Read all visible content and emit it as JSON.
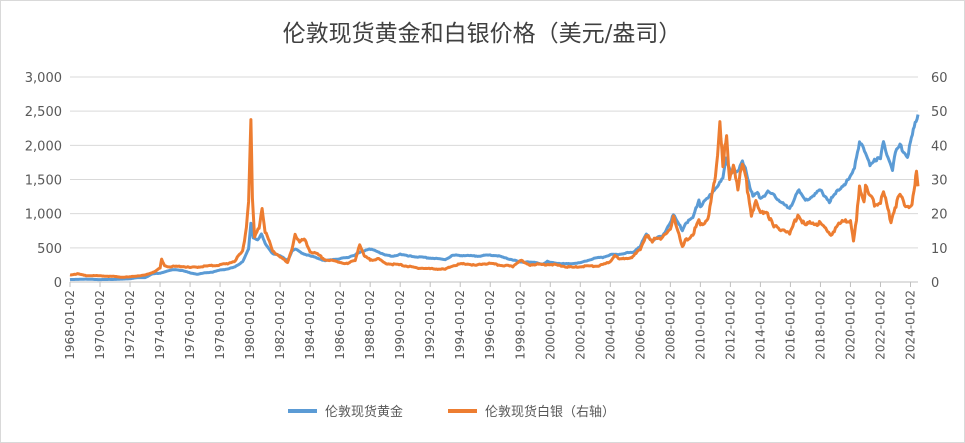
{
  "chart_data": {
    "type": "line",
    "title": "伦敦现货黄金和白银价格（美元/盎司）",
    "x_range": [
      1968.0,
      2024.5
    ],
    "x_ticks": [
      "1968-01-02",
      "1970-01-02",
      "1972-01-02",
      "1974-01-02",
      "1976-01-02",
      "1978-01-02",
      "1980-01-02",
      "1982-01-02",
      "1984-01-02",
      "1986-01-02",
      "1988-01-02",
      "1990-01-02",
      "1992-01-02",
      "1994-01-02",
      "1996-01-02",
      "1998-01-02",
      "2000-01-02",
      "2002-01-02",
      "2004-01-02",
      "2006-01-02",
      "2008-01-02",
      "2010-01-02",
      "2012-01-02",
      "2014-01-02",
      "2016-01-02",
      "2018-01-02",
      "2020-01-02",
      "2022-01-02",
      "2024-01-02"
    ],
    "y_left": {
      "min": 0,
      "max": 3000,
      "ticks": [
        "0",
        "500",
        "1,000",
        "1,500",
        "2,000",
        "2,500",
        "3,000"
      ]
    },
    "y_right": {
      "min": 0,
      "max": 60,
      "ticks": [
        "0",
        "10",
        "20",
        "30",
        "40",
        "50",
        "60"
      ]
    },
    "series": [
      {
        "name": "伦敦现货黄金",
        "axis": "left",
        "color": "#5b9bd5",
        "points": [
          [
            1968.0,
            35
          ],
          [
            1969.0,
            42
          ],
          [
            1970.0,
            35
          ],
          [
            1971.0,
            38
          ],
          [
            1972.0,
            48
          ],
          [
            1972.5,
            65
          ],
          [
            1973.0,
            65
          ],
          [
            1973.5,
            120
          ],
          [
            1974.0,
            130
          ],
          [
            1974.5,
            160
          ],
          [
            1975.0,
            185
          ],
          [
            1975.5,
            165
          ],
          [
            1976.0,
            135
          ],
          [
            1976.5,
            112
          ],
          [
            1977.0,
            135
          ],
          [
            1977.5,
            145
          ],
          [
            1978.0,
            175
          ],
          [
            1978.5,
            190
          ],
          [
            1979.0,
            220
          ],
          [
            1979.5,
            300
          ],
          [
            1979.9,
            480
          ],
          [
            1980.05,
            850
          ],
          [
            1980.2,
            650
          ],
          [
            1980.5,
            620
          ],
          [
            1980.75,
            700
          ],
          [
            1981.0,
            560
          ],
          [
            1981.5,
            420
          ],
          [
            1982.0,
            380
          ],
          [
            1982.5,
            320
          ],
          [
            1982.8,
            450
          ],
          [
            1983.0,
            480
          ],
          [
            1983.5,
            420
          ],
          [
            1984.0,
            380
          ],
          [
            1984.5,
            350
          ],
          [
            1985.0,
            310
          ],
          [
            1985.5,
            330
          ],
          [
            1986.0,
            340
          ],
          [
            1986.5,
            360
          ],
          [
            1987.0,
            400
          ],
          [
            1987.5,
            450
          ],
          [
            1987.95,
            490
          ],
          [
            1988.5,
            440
          ],
          [
            1989.0,
            400
          ],
          [
            1989.5,
            370
          ],
          [
            1990.0,
            410
          ],
          [
            1990.5,
            380
          ],
          [
            1991.0,
            370
          ],
          [
            1991.5,
            360
          ],
          [
            1992.0,
            350
          ],
          [
            1992.5,
            340
          ],
          [
            1993.0,
            330
          ],
          [
            1993.5,
            390
          ],
          [
            1994.0,
            390
          ],
          [
            1994.5,
            385
          ],
          [
            1995.0,
            380
          ],
          [
            1995.5,
            385
          ],
          [
            1996.0,
            395
          ],
          [
            1996.5,
            385
          ],
          [
            1997.0,
            350
          ],
          [
            1997.5,
            325
          ],
          [
            1998.0,
            290
          ],
          [
            1998.5,
            295
          ],
          [
            1999.0,
            285
          ],
          [
            1999.5,
            260
          ],
          [
            1999.8,
            300
          ],
          [
            2000.0,
            285
          ],
          [
            2000.5,
            275
          ],
          [
            2001.0,
            265
          ],
          [
            2001.5,
            270
          ],
          [
            2002.0,
            280
          ],
          [
            2002.5,
            315
          ],
          [
            2003.0,
            350
          ],
          [
            2003.5,
            360
          ],
          [
            2004.0,
            400
          ],
          [
            2004.5,
            400
          ],
          [
            2005.0,
            425
          ],
          [
            2005.5,
            430
          ],
          [
            2006.0,
            530
          ],
          [
            2006.4,
            700
          ],
          [
            2006.8,
            600
          ],
          [
            2007.0,
            640
          ],
          [
            2007.5,
            670
          ],
          [
            2008.0,
            880
          ],
          [
            2008.2,
            980
          ],
          [
            2008.8,
            760
          ],
          [
            2009.0,
            860
          ],
          [
            2009.5,
            940
          ],
          [
            2009.9,
            1200
          ],
          [
            2010.0,
            1110
          ],
          [
            2010.5,
            1220
          ],
          [
            2011.0,
            1380
          ],
          [
            2011.5,
            1500
          ],
          [
            2011.7,
            1800
          ],
          [
            2012.0,
            1650
          ],
          [
            2012.5,
            1600
          ],
          [
            2012.8,
            1750
          ],
          [
            2013.0,
            1670
          ],
          [
            2013.3,
            1400
          ],
          [
            2013.5,
            1250
          ],
          [
            2013.8,
            1300
          ],
          [
            2014.0,
            1230
          ],
          [
            2014.5,
            1310
          ],
          [
            2015.0,
            1250
          ],
          [
            2015.5,
            1150
          ],
          [
            2015.95,
            1060
          ],
          [
            2016.5,
            1350
          ],
          [
            2017.0,
            1190
          ],
          [
            2017.5,
            1260
          ],
          [
            2018.0,
            1340
          ],
          [
            2018.6,
            1180
          ],
          [
            2019.0,
            1290
          ],
          [
            2019.5,
            1420
          ],
          [
            2019.9,
            1500
          ],
          [
            2020.2,
            1620
          ],
          [
            2020.6,
            2060
          ],
          [
            2021.0,
            1870
          ],
          [
            2021.3,
            1720
          ],
          [
            2021.6,
            1800
          ],
          [
            2022.0,
            1800
          ],
          [
            2022.2,
            2040
          ],
          [
            2022.8,
            1640
          ],
          [
            2023.0,
            1900
          ],
          [
            2023.3,
            2000
          ],
          [
            2023.8,
            1840
          ],
          [
            2024.0,
            2050
          ],
          [
            2024.25,
            2250
          ],
          [
            2024.5,
            2450
          ]
        ]
      },
      {
        "name": "伦敦现货白银（右轴）",
        "axis": "right",
        "color": "#ed7d31",
        "points": [
          [
            1968.0,
            2.1
          ],
          [
            1968.5,
            2.4
          ],
          [
            1969.0,
            1.9
          ],
          [
            1970.0,
            1.8
          ],
          [
            1971.0,
            1.6
          ],
          [
            1971.5,
            1.4
          ],
          [
            1972.0,
            1.5
          ],
          [
            1972.5,
            1.8
          ],
          [
            1973.0,
            2.0
          ],
          [
            1973.5,
            2.8
          ],
          [
            1974.0,
            4.0
          ],
          [
            1974.1,
            6.5
          ],
          [
            1974.3,
            4.8
          ],
          [
            1974.6,
            4.5
          ],
          [
            1975.0,
            4.5
          ],
          [
            1975.5,
            4.6
          ],
          [
            1976.0,
            4.2
          ],
          [
            1976.5,
            4.4
          ],
          [
            1977.0,
            4.6
          ],
          [
            1977.5,
            4.8
          ],
          [
            1978.0,
            5.0
          ],
          [
            1978.5,
            5.4
          ],
          [
            1979.0,
            6.2
          ],
          [
            1979.5,
            9.0
          ],
          [
            1979.75,
            16.0
          ],
          [
            1979.9,
            24.0
          ],
          [
            1980.05,
            49.0
          ],
          [
            1980.15,
            24.0
          ],
          [
            1980.3,
            13.0
          ],
          [
            1980.6,
            16.0
          ],
          [
            1980.8,
            22.0
          ],
          [
            1981.0,
            15.0
          ],
          [
            1981.5,
            9.0
          ],
          [
            1982.0,
            7.5
          ],
          [
            1982.5,
            5.5
          ],
          [
            1982.8,
            10.0
          ],
          [
            1983.0,
            14.0
          ],
          [
            1983.3,
            11.5
          ],
          [
            1983.6,
            12.5
          ],
          [
            1984.0,
            9.0
          ],
          [
            1984.5,
            8.0
          ],
          [
            1985.0,
            6.5
          ],
          [
            1985.5,
            6.2
          ],
          [
            1986.0,
            5.8
          ],
          [
            1986.5,
            5.3
          ],
          [
            1987.0,
            6.5
          ],
          [
            1987.3,
            11.0
          ],
          [
            1987.6,
            7.5
          ],
          [
            1988.0,
            6.5
          ],
          [
            1988.5,
            6.8
          ],
          [
            1989.0,
            5.5
          ],
          [
            1989.5,
            5.2
          ],
          [
            1990.0,
            5.0
          ],
          [
            1990.5,
            4.6
          ],
          [
            1991.0,
            4.2
          ],
          [
            1991.5,
            4.0
          ],
          [
            1992.0,
            3.9
          ],
          [
            1992.5,
            3.8
          ],
          [
            1993.0,
            3.7
          ],
          [
            1993.5,
            4.8
          ],
          [
            1994.0,
            5.2
          ],
          [
            1994.5,
            5.3
          ],
          [
            1995.0,
            4.8
          ],
          [
            1995.5,
            5.3
          ],
          [
            1996.0,
            5.4
          ],
          [
            1996.5,
            5.0
          ],
          [
            1997.0,
            4.8
          ],
          [
            1997.5,
            4.5
          ],
          [
            1998.0,
            6.5
          ],
          [
            1998.3,
            5.5
          ],
          [
            1998.6,
            5.0
          ],
          [
            1999.0,
            5.2
          ],
          [
            1999.5,
            5.1
          ],
          [
            2000.0,
            5.2
          ],
          [
            2000.5,
            4.9
          ],
          [
            2001.0,
            4.5
          ],
          [
            2001.5,
            4.3
          ],
          [
            2002.0,
            4.5
          ],
          [
            2002.5,
            4.7
          ],
          [
            2003.0,
            4.6
          ],
          [
            2003.5,
            5.0
          ],
          [
            2004.0,
            6.0
          ],
          [
            2004.3,
            8.0
          ],
          [
            2004.6,
            6.5
          ],
          [
            2005.0,
            7.0
          ],
          [
            2005.5,
            7.4
          ],
          [
            2006.0,
            9.5
          ],
          [
            2006.4,
            14.0
          ],
          [
            2006.8,
            11.5
          ],
          [
            2007.0,
            13.0
          ],
          [
            2007.5,
            13.0
          ],
          [
            2008.0,
            15.0
          ],
          [
            2008.2,
            20.0
          ],
          [
            2008.8,
            10.0
          ],
          [
            2009.0,
            12.0
          ],
          [
            2009.5,
            14.0
          ],
          [
            2009.9,
            18.0
          ],
          [
            2010.0,
            16.5
          ],
          [
            2010.5,
            18.5
          ],
          [
            2010.9,
            28.0
          ],
          [
            2011.0,
            30.0
          ],
          [
            2011.3,
            47.0
          ],
          [
            2011.5,
            35.0
          ],
          [
            2011.75,
            42.0
          ],
          [
            2011.95,
            29.0
          ],
          [
            2012.2,
            35.0
          ],
          [
            2012.5,
            28.0
          ],
          [
            2012.8,
            34.0
          ],
          [
            2013.0,
            31.0
          ],
          [
            2013.4,
            20.0
          ],
          [
            2013.7,
            23.0
          ],
          [
            2014.0,
            20.0
          ],
          [
            2014.4,
            21.0
          ],
          [
            2014.9,
            16.0
          ],
          [
            2015.5,
            15.5
          ],
          [
            2015.95,
            14.0
          ],
          [
            2016.5,
            20.0
          ],
          [
            2017.0,
            16.5
          ],
          [
            2017.5,
            17.5
          ],
          [
            2018.0,
            17.0
          ],
          [
            2018.7,
            14.0
          ],
          [
            2019.0,
            15.5
          ],
          [
            2019.6,
            18.5
          ],
          [
            2020.0,
            17.5
          ],
          [
            2020.2,
            12.0
          ],
          [
            2020.4,
            18.0
          ],
          [
            2020.6,
            28.5
          ],
          [
            2020.9,
            24.0
          ],
          [
            2021.0,
            27.5
          ],
          [
            2021.3,
            25.0
          ],
          [
            2021.6,
            23.0
          ],
          [
            2022.0,
            23.5
          ],
          [
            2022.2,
            26.0
          ],
          [
            2022.7,
            18.0
          ],
          [
            2022.9,
            21.0
          ],
          [
            2023.1,
            23.5
          ],
          [
            2023.3,
            25.5
          ],
          [
            2023.6,
            23.0
          ],
          [
            2023.9,
            22.5
          ],
          [
            2024.1,
            23.0
          ],
          [
            2024.3,
            28.0
          ],
          [
            2024.4,
            32.0
          ],
          [
            2024.5,
            28.0
          ]
        ]
      }
    ],
    "legend_position": "bottom"
  }
}
